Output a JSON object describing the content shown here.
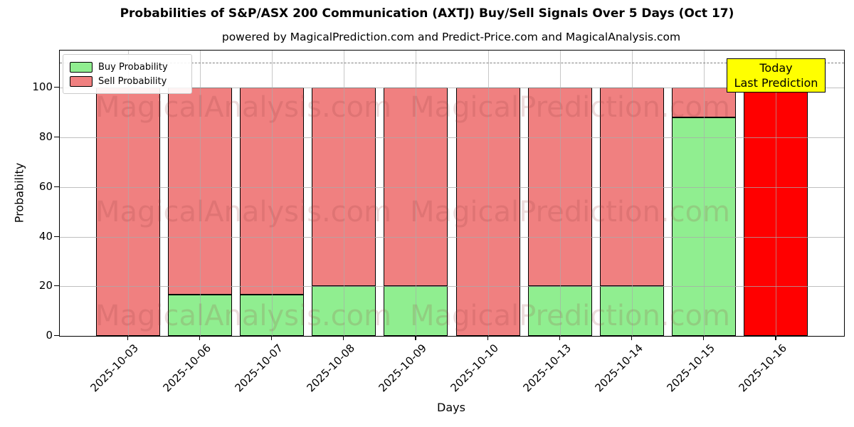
{
  "title": "Probabilities of S&P/ASX 200 Communication (AXTJ) Buy/Sell Signals Over 5 Days (Oct 17)",
  "subtitle": "powered by MagicalPrediction.com and Predict-Price.com and MagicalAnalysis.com",
  "axes": {
    "x_label": "Days",
    "y_label": "Probability",
    "y_ticks": [
      0,
      20,
      40,
      60,
      80,
      100
    ]
  },
  "legend": {
    "items": [
      {
        "label": "Buy Probability",
        "color": "#90EE90"
      },
      {
        "label": "Sell Probability",
        "color": "#F08080"
      }
    ]
  },
  "annotation_box": {
    "line1": "Today",
    "line2": "Last Prediction",
    "bg_color": "#FFFF00"
  },
  "watermarks": {
    "left": "MagicalAnalysis.com",
    "right": "MagicalPrediction.com"
  },
  "colors": {
    "buy": "#90EE90",
    "sell": "#F08080",
    "today_sell": "#FF0000",
    "bar_edge": "#000000",
    "grid": "#AAAAAA",
    "dashed_line": "#7F7F7F",
    "annotation_bg": "#FFFF00"
  },
  "chart_data": {
    "type": "bar",
    "stacked": true,
    "title": "Probabilities of S&P/ASX 200 Communication (AXTJ) Buy/Sell Signals Over 5 Days (Oct 17)",
    "xlabel": "Days",
    "ylabel": "Probability",
    "categories": [
      "2025-10-03",
      "2025-10-06",
      "2025-10-07",
      "2025-10-08",
      "2025-10-09",
      "2025-10-10",
      "2025-10-13",
      "2025-10-14",
      "2025-10-15",
      "2025-10-16"
    ],
    "series": [
      {
        "name": "Buy Probability",
        "values": [
          0,
          16.7,
          16.7,
          20,
          20,
          0,
          20,
          20,
          88,
          0
        ]
      },
      {
        "name": "Sell Probability",
        "values": [
          100,
          83.3,
          83.3,
          80,
          80,
          100,
          80,
          80,
          12,
          100
        ]
      }
    ],
    "today_index": 9,
    "ylim": [
      0,
      115
    ],
    "dashed_line_y": 110,
    "grid": true,
    "legend_position": "upper left"
  }
}
